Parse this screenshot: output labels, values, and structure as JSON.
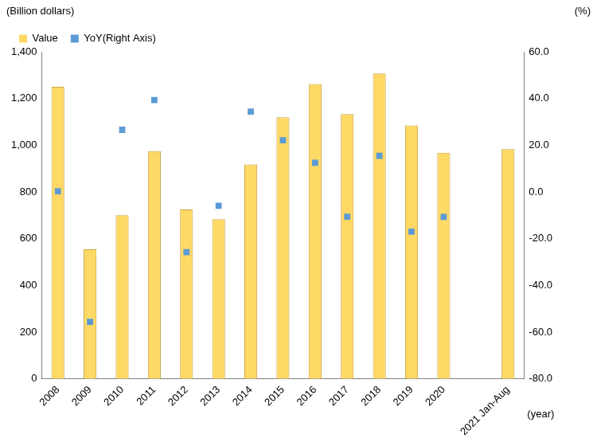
{
  "chart_data": {
    "type": "bar",
    "y_label": "(Billion dollars)",
    "y2_label": "(%)",
    "x_label": "(year)",
    "categories": [
      "2008",
      "2009",
      "2010",
      "2011",
      "2012",
      "2013",
      "2014",
      "2015",
      "2016",
      "2017",
      "2018",
      "2019",
      "2020",
      null,
      "2021 Jan-Aug"
    ],
    "series": [
      {
        "name": "Value",
        "type": "bar",
        "color": "#FFD966",
        "values": [
          1250,
          555,
          700,
          975,
          725,
          683,
          918,
          1120,
          1262,
          1133,
          1307,
          1085,
          968,
          null,
          983
        ]
      },
      {
        "name": "YoY(Right Axis)",
        "type": "scatter",
        "marker": "square",
        "color": "#5B9BD5",
        "axis": "y2",
        "values": [
          0.3,
          -55.6,
          26.6,
          39.3,
          -25.8,
          -5.9,
          34.4,
          22.1,
          12.5,
          -10.6,
          15.5,
          -17.0,
          -10.7,
          null,
          null
        ]
      }
    ],
    "ylim": [
      0,
      1400
    ],
    "yticks": [
      0,
      200,
      400,
      600,
      800,
      {
        "value": 1000,
        "label": "1,000"
      },
      {
        "value": 1200,
        "label": "1,200"
      },
      {
        "value": 1400,
        "label": "1,400"
      }
    ],
    "y2lim": [
      -80,
      60
    ],
    "y2ticks": [
      {
        "value": -80,
        "label": "-80.0"
      },
      {
        "value": -60,
        "label": "-60.0"
      },
      {
        "value": -40,
        "label": "-40.0"
      },
      {
        "value": -20,
        "label": "-20.0"
      },
      {
        "value": 0,
        "label": "0.0"
      },
      {
        "value": 20,
        "label": "20.0"
      },
      {
        "value": 40,
        "label": "40.0"
      },
      {
        "value": 60,
        "label": "60.0"
      }
    ],
    "grid": false,
    "legend": "upper left"
  }
}
